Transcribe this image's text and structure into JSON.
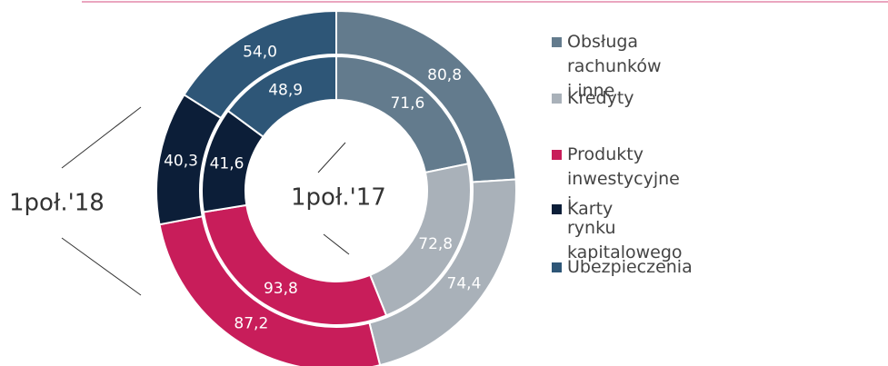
{
  "chart_data": {
    "type": "pie",
    "categories": [
      "Obsługa rachunków i inne",
      "Kredyty",
      "Produkty inwestycyjne i\nrynku kapitalowego",
      "Karty",
      "Ubezpieczenia"
    ],
    "colors": [
      "#637b8d",
      "#a9b1b9",
      "#c81d5a",
      "#0c1e38",
      "#2e5677"
    ],
    "series": [
      {
        "name": "1poł.'18",
        "values": [
          80.8,
          74.4,
          87.2,
          40.3,
          54.0
        ],
        "value_labels": [
          "80,8",
          "74,4",
          "87,2",
          "40,3",
          "54,0"
        ]
      },
      {
        "name": "1poł.'17",
        "values": [
          71.6,
          72.8,
          93.8,
          41.6,
          48.9
        ],
        "value_labels": [
          "71,6",
          "72,8",
          "93,8",
          "41,6",
          "48,9"
        ]
      }
    ]
  }
}
